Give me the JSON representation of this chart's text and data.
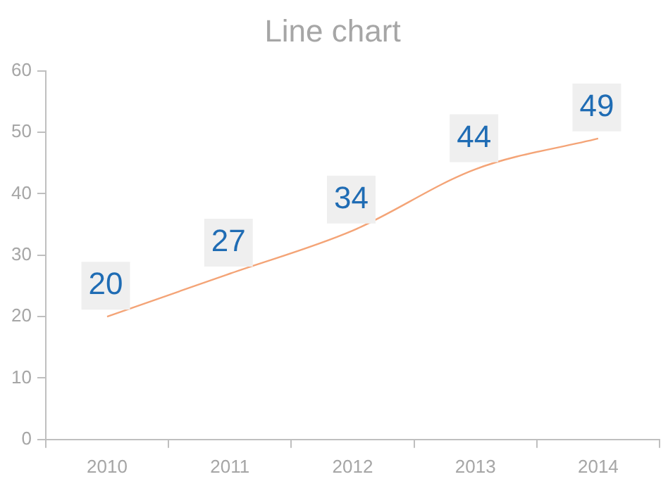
{
  "chart_data": {
    "type": "line",
    "title": "Line chart",
    "categories": [
      "2010",
      "2011",
      "2012",
      "2013",
      "2014"
    ],
    "series": [
      {
        "color": "#f4a477",
        "values": [
          20,
          27,
          34,
          44,
          49
        ]
      }
    ],
    "ylim": [
      0,
      60
    ],
    "yticks": [
      0,
      10,
      20,
      30,
      40,
      50,
      60
    ],
    "grid": false,
    "legend": false,
    "marker": "none",
    "line_style": "solid",
    "data_labels": true
  }
}
